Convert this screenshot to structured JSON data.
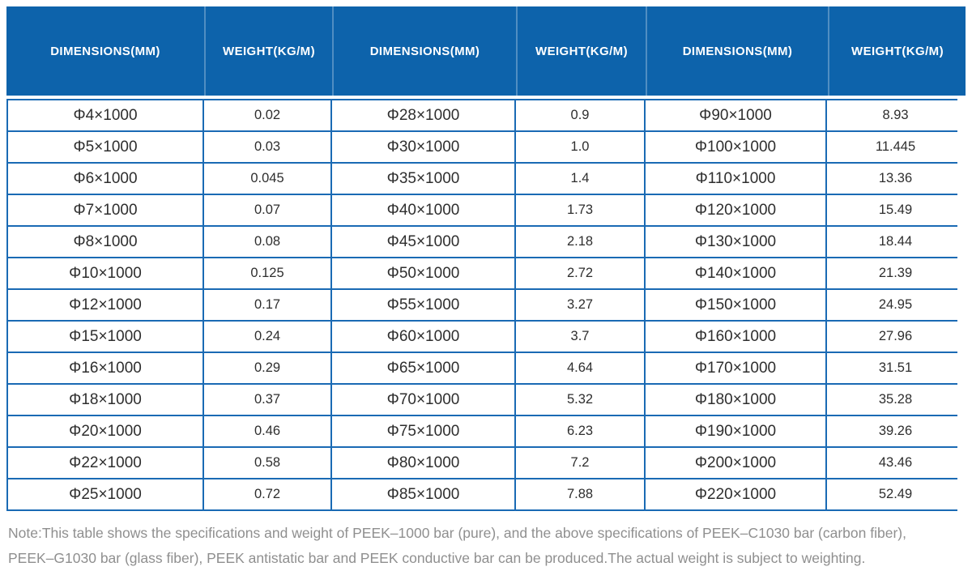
{
  "colors": {
    "header_bg": "#0d63ab",
    "grid_border": "#1a6ab4",
    "body_text": "#2e2e2e",
    "note_text": "#8f8f8f"
  },
  "table": {
    "headers": [
      "DIMENSIONS(MM)",
      "WEIGHT(KG/M)",
      "DIMENSIONS(MM)",
      "WEIGHT(KG/M)",
      "DIMENSIONS(MM)",
      "WEIGHT(KG/M)"
    ],
    "rows": [
      [
        "Φ4×1000",
        "0.02",
        "Φ28×1000",
        "0.9",
        "Φ90×1000",
        "8.93"
      ],
      [
        "Φ5×1000",
        "0.03",
        "Φ30×1000",
        "1.0",
        "Φ100×1000",
        "11.445"
      ],
      [
        "Φ6×1000",
        "0.045",
        "Φ35×1000",
        "1.4",
        "Φ110×1000",
        "13.36"
      ],
      [
        "Φ7×1000",
        "0.07",
        "Φ40×1000",
        "1.73",
        "Φ120×1000",
        "15.49"
      ],
      [
        "Φ8×1000",
        "0.08",
        "Φ45×1000",
        "2.18",
        "Φ130×1000",
        "18.44"
      ],
      [
        "Φ10×1000",
        "0.125",
        "Φ50×1000",
        "2.72",
        "Φ140×1000",
        "21.39"
      ],
      [
        "Φ12×1000",
        "0.17",
        "Φ55×1000",
        "3.27",
        "Φ150×1000",
        "24.95"
      ],
      [
        "Φ15×1000",
        "0.24",
        "Φ60×1000",
        "3.7",
        "Φ160×1000",
        "27.96"
      ],
      [
        "Φ16×1000",
        "0.29",
        "Φ65×1000",
        "4.64",
        "Φ170×1000",
        "31.51"
      ],
      [
        "Φ18×1000",
        "0.37",
        "Φ70×1000",
        "5.32",
        "Φ180×1000",
        "35.28"
      ],
      [
        "Φ20×1000",
        "0.46",
        "Φ75×1000",
        "6.23",
        "Φ190×1000",
        "39.26"
      ],
      [
        "Φ22×1000",
        "0.58",
        "Φ80×1000",
        "7.2",
        "Φ200×1000",
        "43.46"
      ],
      [
        "Φ25×1000",
        "0.72",
        "Φ85×1000",
        "7.88",
        "Φ220×1000",
        "52.49"
      ]
    ]
  },
  "note": {
    "line1": "Note:This table shows the specifications and weight of PEEK–1000 bar (pure), and the above specifications of PEEK–C1030 bar (carbon fiber),",
    "line2": "PEEK–G1030 bar (glass fiber), PEEK antistatic bar and PEEK conductive bar can be produced.The actual weight is subject to weighting."
  }
}
